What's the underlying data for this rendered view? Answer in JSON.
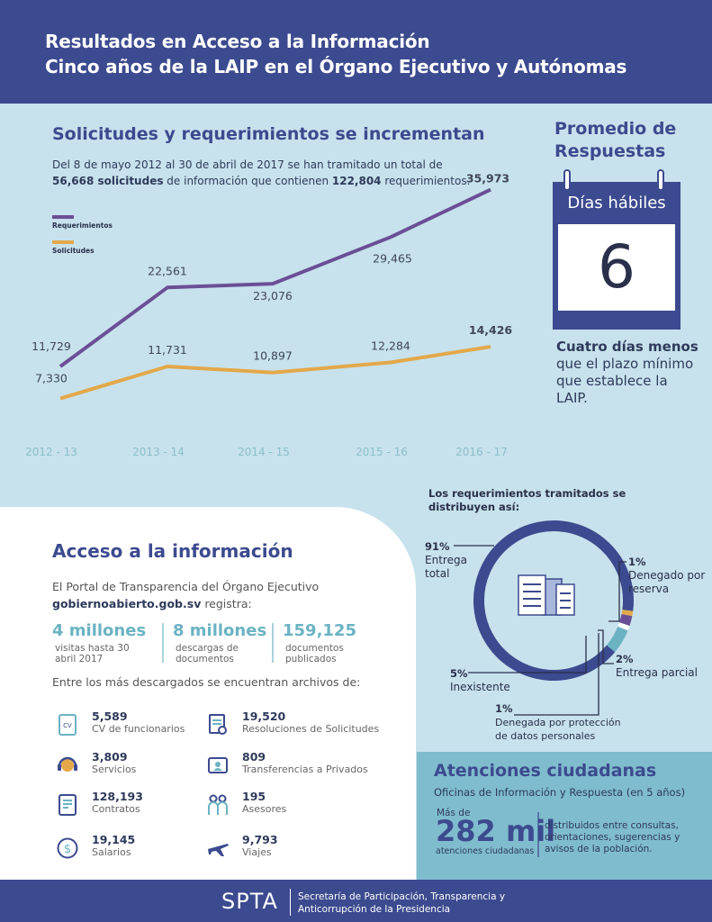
{
  "header": {
    "line1": "Resultados en Acceso a la Información",
    "line2": "Cinco años de la LAIP en el Órgano Ejecutivo y Autónomas"
  },
  "chart_section": {
    "title": "Solicitudes y requerimientos se incrementan",
    "intro_a": "Del 8 de mayo 2012 al 30 de abril de 2017 se han tramitado un total de ",
    "intro_b": "56,668 solicitudes",
    "intro_c": " de información que contienen ",
    "intro_d": "122,804",
    "intro_e": " requerimientos."
  },
  "chart_data": {
    "type": "line",
    "categories": [
      "2012 - 13",
      "2013 - 14",
      "2014 - 15",
      "2015 - 16",
      "2016 - 17"
    ],
    "series": [
      {
        "name": "Requerimientos",
        "values": [
          11729,
          22561,
          23076,
          29465,
          35973
        ],
        "labels": [
          "11,729",
          "22,561",
          "23,076",
          "29,465",
          "35,973"
        ],
        "color": "#6b4f96"
      },
      {
        "name": "Solicitudes",
        "values": [
          7330,
          11731,
          10897,
          12284,
          14426
        ],
        "labels": [
          "7,330",
          "11,731",
          "10,897",
          "12,284",
          "14,426"
        ],
        "color": "#e3a84a"
      }
    ],
    "legend_position": "top-left"
  },
  "promedio": {
    "title_line1": "Promedio de",
    "title_line2": "Respuestas",
    "calendar_label": "Días hábiles",
    "days": "6",
    "note_bold": "Cuatro días menos",
    "note_rest": " que el plazo mínimo que establece la LAIP."
  },
  "acceso": {
    "title": "Acceso a la información",
    "portal_line1": "El Portal de Transparencia del Órgano Ejecutivo",
    "portal_site": "gobiernoabierto.gob.sv",
    "portal_rest": " registra:",
    "stats": [
      {
        "big": "4 millones",
        "small": "visitas hasta 30 abril 2017"
      },
      {
        "big": "8 millones",
        "small": "descargas de documentos"
      },
      {
        "big": "159,125",
        "small": "documentos publicados"
      }
    ],
    "downloads_intro": "Entre los más descargados se encuentran archivos de:",
    "downloads": [
      {
        "num": "5,589",
        "label": "CV de funcionarios",
        "icon": "cv-document-icon"
      },
      {
        "num": "19,520",
        "label": "Resoluciones de Solicitudes",
        "icon": "resolution-document-icon"
      },
      {
        "num": "3,809",
        "label": "Servicios",
        "icon": "service-headset-icon"
      },
      {
        "num": "809",
        "label": "Transferencias a Privados",
        "icon": "transfer-icon"
      },
      {
        "num": "128,193",
        "label": "Contratos",
        "icon": "contract-icon"
      },
      {
        "num": "195",
        "label": "Asesores",
        "icon": "advisors-icon"
      },
      {
        "num": "19,145",
        "label": "Salarios",
        "icon": "dollar-icon"
      },
      {
        "num": "9,793",
        "label": "Viajes",
        "icon": "airplane-icon"
      }
    ]
  },
  "distribution": {
    "title": "Los requerimientos tramitados se distribuyen así:",
    "items": [
      {
        "pct": "91%",
        "label": "Entrega total",
        "value": 91,
        "color": "#3c4a8f"
      },
      {
        "pct": "1%",
        "label": "Denegado por reserva",
        "value": 1,
        "color": "#e3a84a"
      },
      {
        "pct": "2%",
        "label": "Entrega parcial",
        "value": 2,
        "color": "#6b4f96"
      },
      {
        "pct": "1%",
        "label": "Denegada por protección de datos personales",
        "value": 1,
        "color": "#ffffff"
      },
      {
        "pct": "5%",
        "label": "Inexistente",
        "value": 5,
        "color": "#6bb3c3"
      }
    ]
  },
  "atenciones": {
    "title": "Atenciones ciudadanas",
    "subtitle": "Oficinas de Información y Respuesta (en 5 años)",
    "mas_de": "Más de",
    "big": "282 mil",
    "atc_label": "atenciones ciudadanas",
    "distributed": "distribuidos entre consultas, orientaciones, sugerencias y avisos de la población."
  },
  "footer": {
    "logo": "SPTA",
    "text": "Secretaría de Participación, Transparencia y Anticorrupción de la Presidencia"
  }
}
